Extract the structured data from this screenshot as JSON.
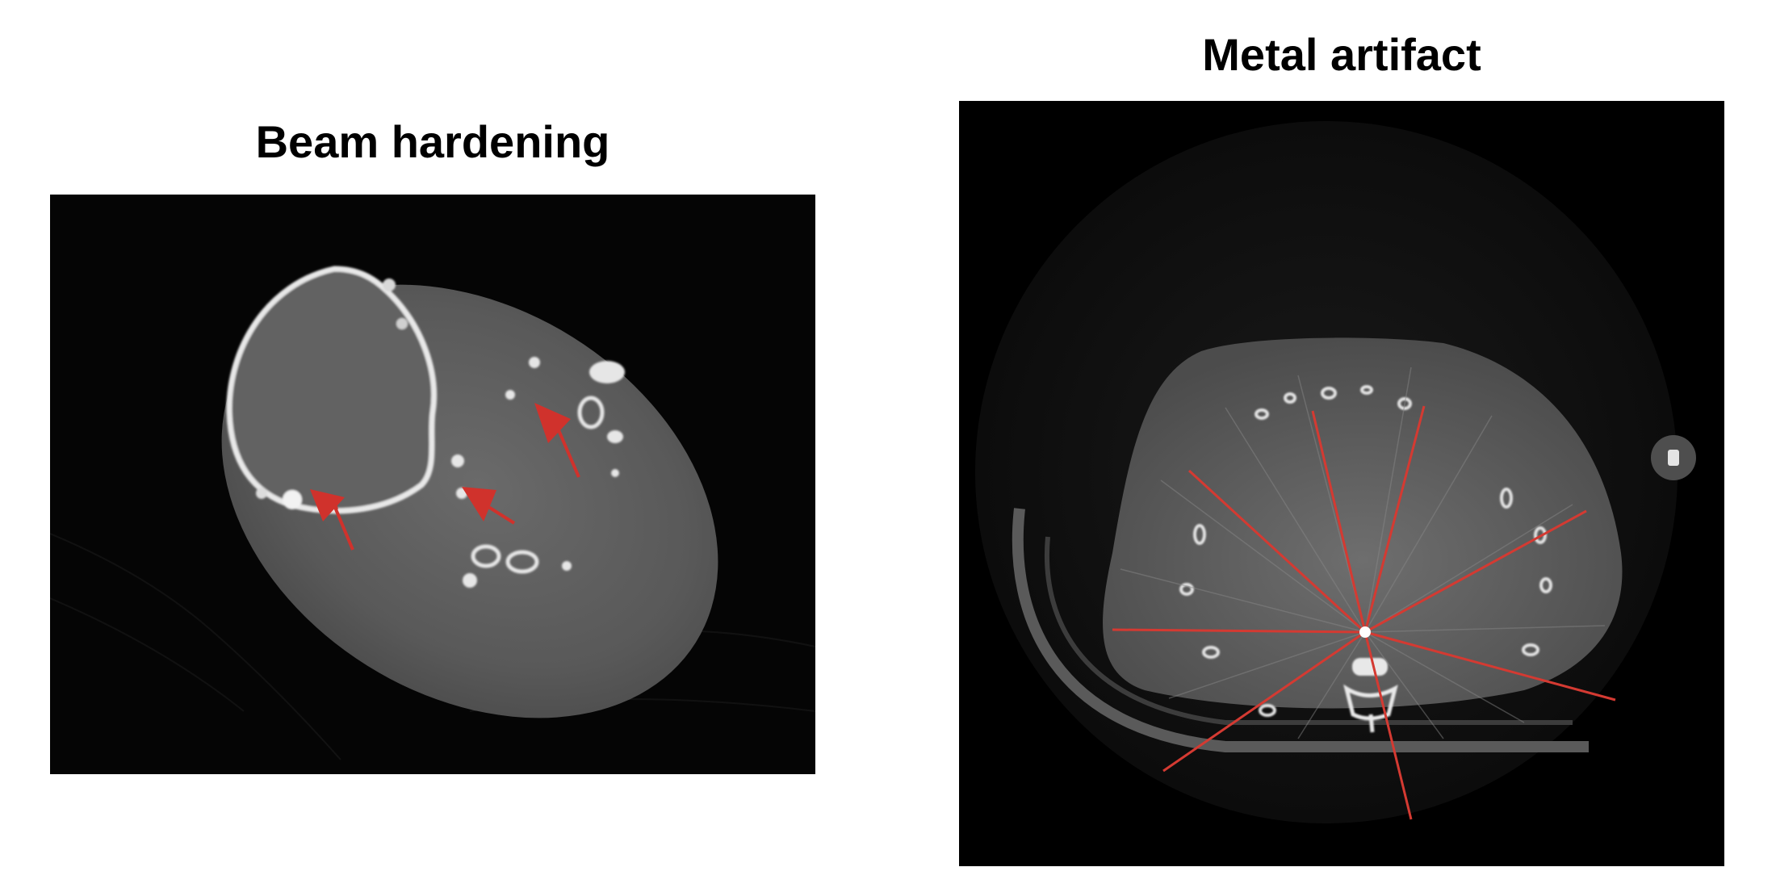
{
  "panels": [
    {
      "title": "Beam hardening",
      "arrow_color": "#d0322c"
    },
    {
      "title": "Metal artifact",
      "streak_color": "#d43a32"
    }
  ]
}
